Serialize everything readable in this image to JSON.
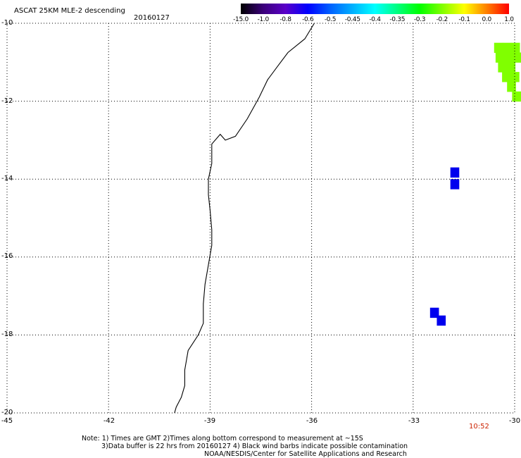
{
  "header": {
    "title": "ASCAT 25KM MLE-2 descending",
    "date": "20160127"
  },
  "colorbar": {
    "ticks": [
      "-15.0",
      "-1.0",
      "-0.8",
      "-0.6",
      "-0.5",
      "-0.45",
      "-0.4",
      "-0.35",
      "-0.3",
      "-0.2",
      "-0.1",
      "0.0",
      "1.0"
    ],
    "colors": [
      "#000000",
      "#3a007a",
      "#5a00c8",
      "#0000ff",
      "#0060ff",
      "#00b0ff",
      "#00ffff",
      "#00ff80",
      "#00ff00",
      "#80ff00",
      "#ffff00",
      "#ff8000",
      "#ff0000"
    ]
  },
  "map": {
    "lat_labels": [
      "-10",
      "-12",
      "-14",
      "-16",
      "-18",
      "-20"
    ],
    "lon_labels": [
      "-45",
      "-42",
      "-39",
      "-36",
      "-33",
      "-30"
    ],
    "lat_range": [
      -20,
      -10
    ],
    "lon_range": [
      -45,
      -30
    ],
    "time_label": "10:52",
    "time_color": "#cc2200"
  },
  "notes": [
    "Note: 1) Times are GMT 2)Times along bottom correspond to measurement at ~15S",
    "3)Data buffer is 22 hrs from 20160127 4) Black wind barbs indicate possible contamination",
    "NOAA/NESDIS/Center for Satellite Applications and Research"
  ]
}
